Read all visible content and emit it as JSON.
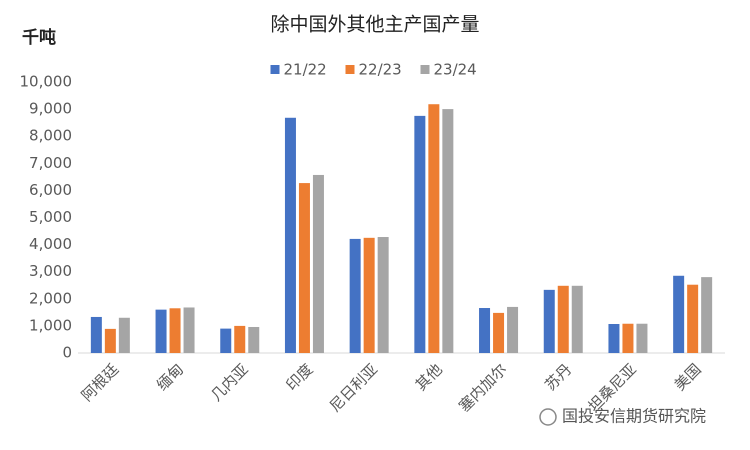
{
  "chart_data": {
    "type": "bar",
    "title": "除中国外其他主产国产量",
    "unit_label": "千吨",
    "watermark": "国投安信期货研究院",
    "categories": [
      "阿根廷",
      "缅甸",
      "几内亚",
      "印度",
      "尼日利亚",
      "其他",
      "塞内加尔",
      "苏丹",
      "坦桑尼亚",
      "美国"
    ],
    "series": [
      {
        "name": "21/22",
        "color": "#4472c4",
        "values": [
          1330,
          1600,
          900,
          8680,
          4210,
          8750,
          1660,
          2330,
          1070,
          2850
        ]
      },
      {
        "name": "22/23",
        "color": "#ed7d31",
        "values": [
          890,
          1650,
          1000,
          6270,
          4250,
          9180,
          1480,
          2480,
          1080,
          2520
        ]
      },
      {
        "name": "23/24",
        "color": "#a5a5a5",
        "values": [
          1300,
          1680,
          960,
          6570,
          4280,
          9000,
          1700,
          2480,
          1080,
          2800
        ]
      }
    ],
    "ylim": [
      0,
      10000
    ],
    "yticks": [
      0,
      {
        "value": 1000,
        "label": "1,000"
      },
      {
        "value": 2000,
        "label": "2,000"
      },
      {
        "value": 3000,
        "label": "3,000"
      },
      {
        "value": 4000,
        "label": "4,000"
      },
      {
        "value": 5000,
        "label": "5,000"
      },
      {
        "value": 6000,
        "label": "6,000"
      },
      {
        "value": 7000,
        "label": "7,000"
      },
      {
        "value": 8000,
        "label": "8,000"
      },
      {
        "value": 9000,
        "label": "9,000"
      },
      {
        "value": 10000,
        "label": "10,000"
      }
    ],
    "grid": false,
    "legend": "top"
  }
}
